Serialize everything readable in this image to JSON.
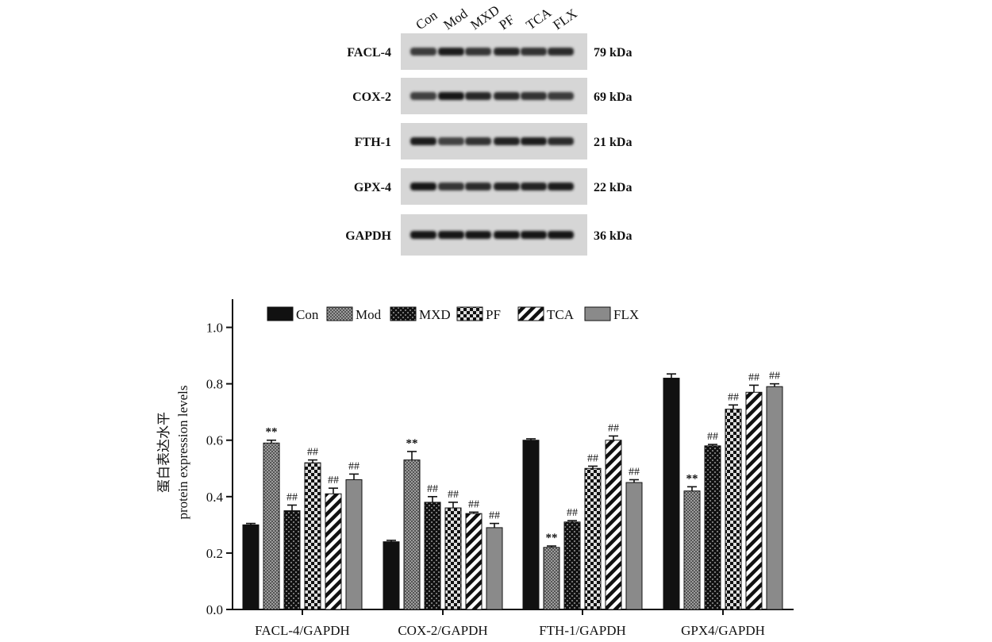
{
  "blot": {
    "lanes": [
      "Con",
      "Mod",
      "MXD",
      "PF",
      "TCA",
      "FLX"
    ],
    "rows": [
      {
        "protein": "FACL-4",
        "mw": "79 kDa",
        "intensity": [
          0.55,
          0.85,
          0.6,
          0.75,
          0.65,
          0.72
        ]
      },
      {
        "protein": "COX-2",
        "mw": "69 kDa",
        "intensity": [
          0.5,
          0.9,
          0.75,
          0.7,
          0.65,
          0.55
        ]
      },
      {
        "protein": "FTH-1",
        "mw": "21 kDa",
        "intensity": [
          0.85,
          0.45,
          0.65,
          0.8,
          0.85,
          0.7
        ]
      },
      {
        "protein": "GPX-4",
        "mw": "22 kDa",
        "intensity": [
          0.9,
          0.6,
          0.7,
          0.78,
          0.82,
          0.85
        ]
      },
      {
        "protein": "GAPDH",
        "mw": "36 kDa",
        "intensity": [
          0.95,
          0.95,
          0.95,
          0.95,
          0.95,
          0.95
        ]
      }
    ]
  },
  "chart_data": {
    "type": "bar",
    "ylabel_cn": "蛋白表达水平",
    "ylabel": "protein expression levels",
    "ylim": [
      0,
      1.1
    ],
    "yticks": [
      "0.0",
      "0.2",
      "0.4",
      "0.6",
      "0.8",
      "1.0"
    ],
    "categories": [
      "FACL-4/GAPDH",
      "COX-2/GAPDH",
      "FTH-1/GAPDH",
      "GPX4/GAPDH"
    ],
    "legend_position": "top",
    "series": [
      {
        "name": "Con",
        "pattern": "solid",
        "values": [
          0.3,
          0.24,
          0.6,
          0.82
        ],
        "errors": [
          0.005,
          0.005,
          0.005,
          0.015
        ],
        "annotations": [
          "",
          "",
          "",
          ""
        ]
      },
      {
        "name": "Mod",
        "pattern": "dots",
        "values": [
          0.59,
          0.53,
          0.22,
          0.42
        ],
        "errors": [
          0.01,
          0.03,
          0.005,
          0.015
        ],
        "annotations": [
          "**",
          "**",
          "**",
          "**"
        ]
      },
      {
        "name": "MXD",
        "pattern": "checks",
        "values": [
          0.35,
          0.38,
          0.31,
          0.58
        ],
        "errors": [
          0.02,
          0.02,
          0.005,
          0.005
        ],
        "annotations": [
          "##",
          "##",
          "##",
          "##"
        ]
      },
      {
        "name": "PF",
        "pattern": "grid",
        "values": [
          0.52,
          0.36,
          0.5,
          0.71
        ],
        "errors": [
          0.01,
          0.02,
          0.008,
          0.015
        ],
        "annotations": [
          "##",
          "##",
          "##",
          "##"
        ]
      },
      {
        "name": "TCA",
        "pattern": "stripes",
        "values": [
          0.41,
          0.34,
          0.6,
          0.77
        ],
        "errors": [
          0.02,
          0.005,
          0.015,
          0.025
        ],
        "annotations": [
          "##",
          "##",
          "##",
          "##"
        ]
      },
      {
        "name": "FLX",
        "pattern": "gray",
        "values": [
          0.46,
          0.29,
          0.45,
          0.79
        ],
        "errors": [
          0.02,
          0.015,
          0.01,
          0.01
        ],
        "annotations": [
          "##",
          "##",
          "##",
          "##"
        ]
      }
    ]
  }
}
